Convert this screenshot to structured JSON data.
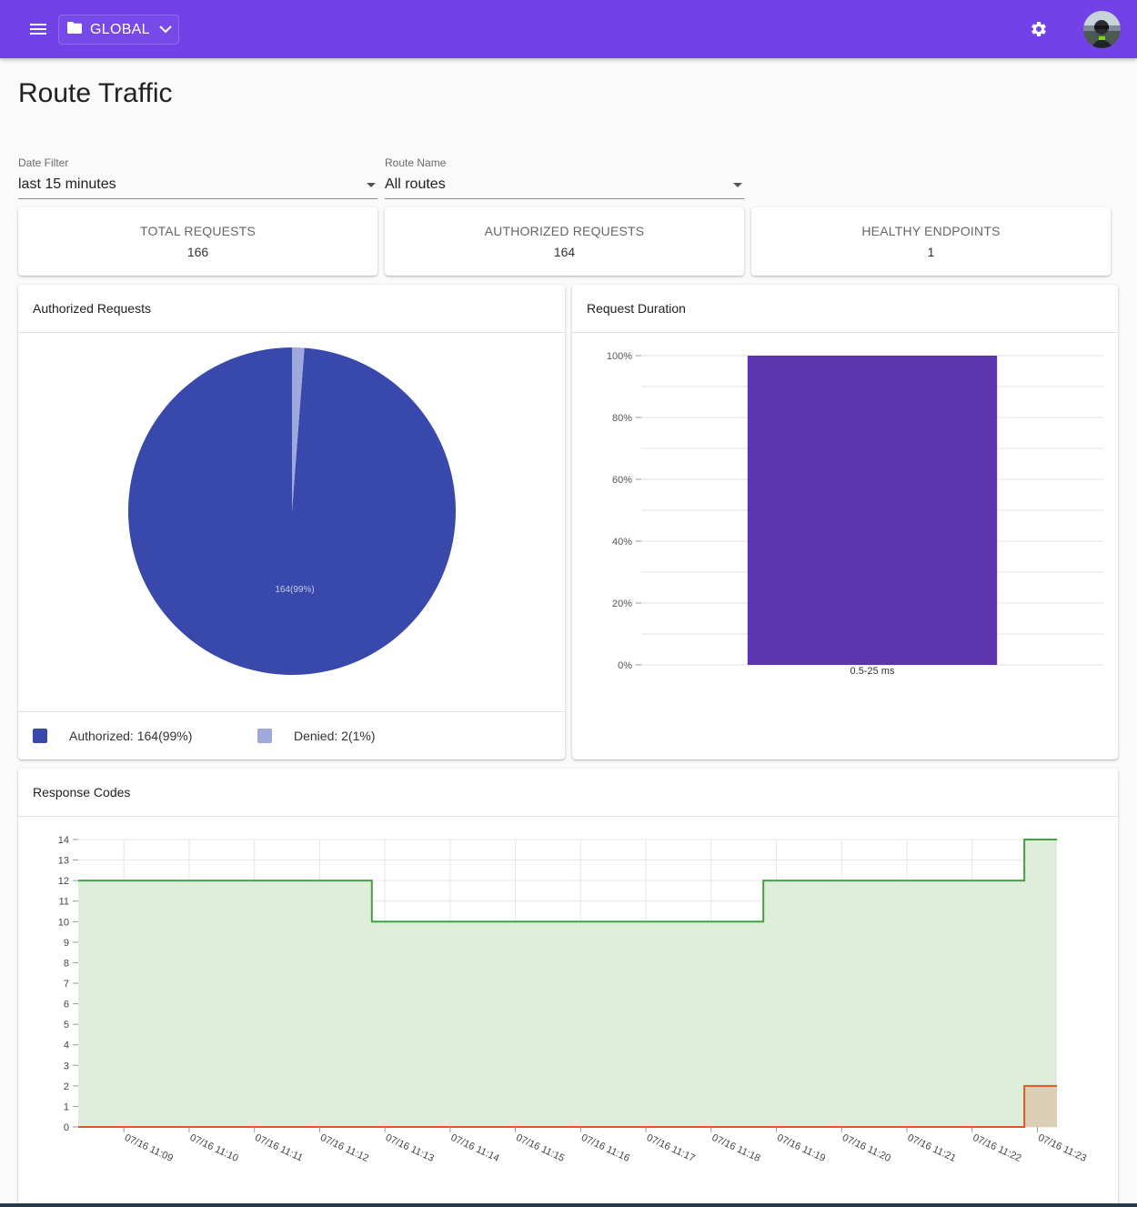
{
  "appbar": {
    "scope_label": "GLOBAL",
    "brand_color": "#7242e8"
  },
  "page": {
    "title": "Route Traffic"
  },
  "filters": {
    "date": {
      "label": "Date Filter",
      "value": "last 15 minutes"
    },
    "route": {
      "label": "Route Name",
      "value": "All routes"
    }
  },
  "stats": [
    {
      "title": "TOTAL REQUESTS",
      "value": "166"
    },
    {
      "title": "AUTHORIZED REQUESTS",
      "value": "164"
    },
    {
      "title": "HEALTHY ENDPOINTS",
      "value": "1"
    }
  ],
  "panels": {
    "authorized": {
      "title": "Authorized Requests",
      "legend": [
        {
          "label": "Authorized: 164(99%)",
          "color": "#3949ab"
        },
        {
          "label": "Denied: 2(1%)",
          "color": "#9fa8da"
        }
      ]
    },
    "duration": {
      "title": "Request Duration"
    },
    "codes": {
      "title": "Response Codes"
    }
  },
  "chart_data": [
    {
      "type": "pie",
      "labels": [
        "Authorized",
        "Denied"
      ],
      "values": [
        164,
        2
      ],
      "colors": [
        "#3949ab",
        "#9fa8da"
      ],
      "data_labels": [
        "164(99%)"
      ]
    },
    {
      "type": "bar",
      "categories": [
        "0.5-25 ms"
      ],
      "values": [
        100
      ],
      "color": "#5e35b1",
      "ylim": [
        0,
        100
      ],
      "yticks": [
        "0%",
        "20%",
        "40%",
        "60%",
        "80%",
        "100%"
      ]
    },
    {
      "type": "area",
      "step": true,
      "ylim": [
        0,
        14
      ],
      "ytick_labels": [
        "0",
        "1",
        "2",
        "3",
        "4",
        "5",
        "6",
        "7",
        "8",
        "9",
        "10",
        "11",
        "12",
        "13",
        "14"
      ],
      "xtick_labels": [
        "07/16 11:09",
        "07/16 11:10",
        "07/16 11:11",
        "07/16 11:12",
        "07/16 11:13",
        "07/16 11:14",
        "07/16 11:15",
        "07/16 11:16",
        "07/16 11:17",
        "07/16 11:18",
        "07/16 11:19",
        "07/16 11:20",
        "07/16 11:21",
        "07/16 11:22",
        "07/16 11:23"
      ],
      "x_range": [
        -0.7,
        14.3
      ],
      "series": [
        {
          "color": "#43a047",
          "fill": "#dcedd9",
          "points": [
            [
              -0.7,
              12
            ],
            [
              3.8,
              12
            ],
            [
              3.8,
              10
            ],
            [
              9.8,
              10
            ],
            [
              9.8,
              12
            ],
            [
              13.8,
              12
            ],
            [
              13.8,
              14
            ],
            [
              14.3,
              14
            ]
          ]
        },
        {
          "color": "#e6561e",
          "fill": "#d9c9ae",
          "points": [
            [
              -0.7,
              0
            ],
            [
              13.8,
              0
            ],
            [
              13.8,
              2
            ],
            [
              14.3,
              2
            ]
          ]
        }
      ]
    }
  ]
}
